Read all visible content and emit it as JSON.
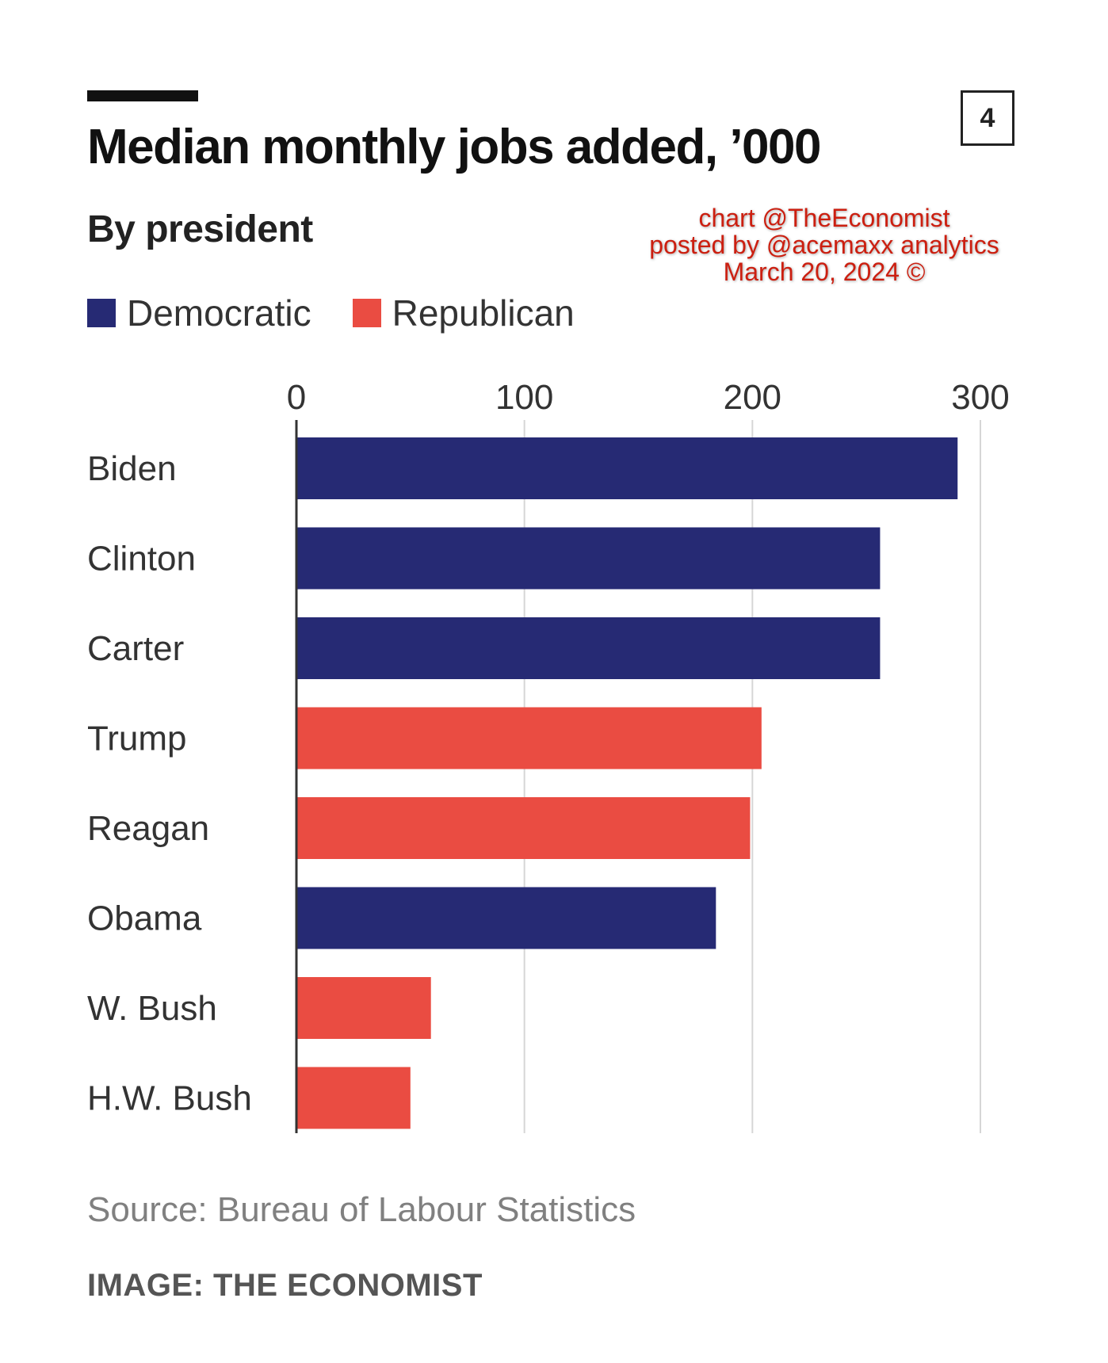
{
  "header": {
    "title": "Median monthly jobs added, ’000",
    "subtitle": "By president",
    "chart_number": "4"
  },
  "watermark": {
    "line1": "chart @TheEconomist",
    "line2": "posted by @acemaxx analytics",
    "line3": "March 20, 2024 ©"
  },
  "legend": [
    {
      "label": "Democratic",
      "color": "#262a74"
    },
    {
      "label": "Republican",
      "color": "#ea4c42"
    }
  ],
  "footer": {
    "source": "Source: Bureau of Labour Statistics",
    "credit": "IMAGE: THE ECONOMIST"
  },
  "chart_data": {
    "type": "bar",
    "orientation": "horizontal",
    "title": "Median monthly jobs added, ’000",
    "subtitle": "By president",
    "categories": [
      "Biden",
      "Clinton",
      "Carter",
      "Trump",
      "Reagan",
      "Obama",
      "W. Bush",
      "H.W. Bush"
    ],
    "values": [
      290,
      256,
      256,
      204,
      199,
      184,
      59,
      50
    ],
    "party": [
      "Democratic",
      "Democratic",
      "Democratic",
      "Republican",
      "Republican",
      "Democratic",
      "Republican",
      "Republican"
    ],
    "colors": {
      "Democratic": "#262a74",
      "Republican": "#ea4c42"
    },
    "xlim": [
      0,
      300
    ],
    "xticks": [
      0,
      100,
      200,
      300
    ],
    "grid": true,
    "legend_position": "top-left"
  }
}
